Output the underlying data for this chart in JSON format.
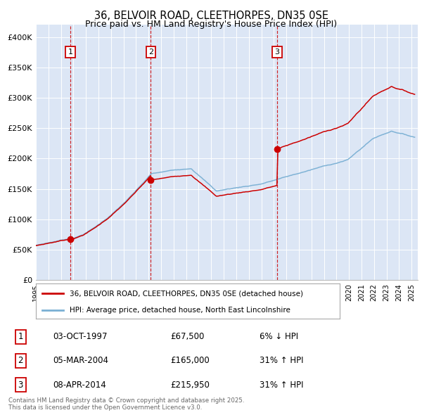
{
  "title": "36, BELVOIR ROAD, CLEETHORPES, DN35 0SE",
  "subtitle": "Price paid vs. HM Land Registry's House Price Index (HPI)",
  "sale_dates": [
    "1997-10-03",
    "2004-03-05",
    "2014-04-08"
  ],
  "sale_prices": [
    67500,
    165000,
    215950
  ],
  "sale_labels": [
    "1",
    "2",
    "3"
  ],
  "legend_property": "36, BELVOIR ROAD, CLEETHORPES, DN35 0SE (detached house)",
  "legend_hpi": "HPI: Average price, detached house, North East Lincolnshire",
  "table_rows": [
    {
      "num": "1",
      "date": "03-OCT-1997",
      "price": "£67,500",
      "change": "6% ↓ HPI"
    },
    {
      "num": "2",
      "date": "05-MAR-2004",
      "price": "£165,000",
      "change": "31% ↑ HPI"
    },
    {
      "num": "3",
      "date": "08-APR-2014",
      "price": "£215,950",
      "change": "31% ↑ HPI"
    }
  ],
  "footnote": "Contains HM Land Registry data © Crown copyright and database right 2025.\nThis data is licensed under the Open Government Licence v3.0.",
  "ylabel_ticks": [
    "£0",
    "£50K",
    "£100K",
    "£150K",
    "£200K",
    "£250K",
    "£300K",
    "£350K",
    "£400K"
  ],
  "ytick_values": [
    0,
    50000,
    100000,
    150000,
    200000,
    250000,
    300000,
    350000,
    400000
  ],
  "ylim": [
    0,
    420000
  ],
  "bg_color": "#dce6f5",
  "red_line_color": "#cc0000",
  "blue_line_color": "#7ab0d4",
  "vline_color": "#cc0000",
  "box_color": "#cc0000",
  "grid_color": "#ffffff",
  "fig_bg": "#ffffff"
}
